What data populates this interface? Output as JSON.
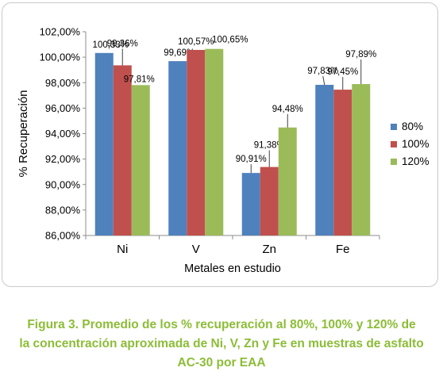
{
  "chart_data": {
    "type": "bar",
    "xlabel": "Metales en estudio",
    "ylabel": "% Recuperación",
    "categories": [
      "Ni",
      "V",
      "Zn",
      "Fe"
    ],
    "ylim": [
      86,
      102
    ],
    "yticks": [
      "86,00%",
      "88,00%",
      "90,00%",
      "92,00%",
      "94,00%",
      "96,00%",
      "98,00%",
      "100,00%",
      "102,00%"
    ],
    "grid": false,
    "legend_position": "right",
    "series": [
      {
        "name": "80%",
        "color": "#4f81bd",
        "values": [
          100.33,
          99.69,
          90.91,
          97.83
        ],
        "labels": [
          "100,33%",
          "99,69%",
          "90,91%",
          "97,83%"
        ]
      },
      {
        "name": "100%",
        "color": "#c0504d",
        "values": [
          99.36,
          100.57,
          91.38,
          97.45
        ],
        "labels": [
          "99,36%",
          "100,57%",
          "91,38%",
          "97,45%"
        ]
      },
      {
        "name": "120%",
        "color": "#9bbb59",
        "values": [
          97.81,
          100.65,
          94.48,
          97.89
        ],
        "labels": [
          "97,81%",
          "100,65%",
          "94,48%",
          "97,89%"
        ]
      }
    ]
  },
  "caption": {
    "line1": "Figura 3. Promedio de los % recuperación al 80%, 100% y 120% de",
    "line2": "la concentración aproximada de Ni, V, Zn y Fe en muestras de asfalto",
    "line3": "AC-30 por EAA",
    "color": "#8cbd37"
  }
}
